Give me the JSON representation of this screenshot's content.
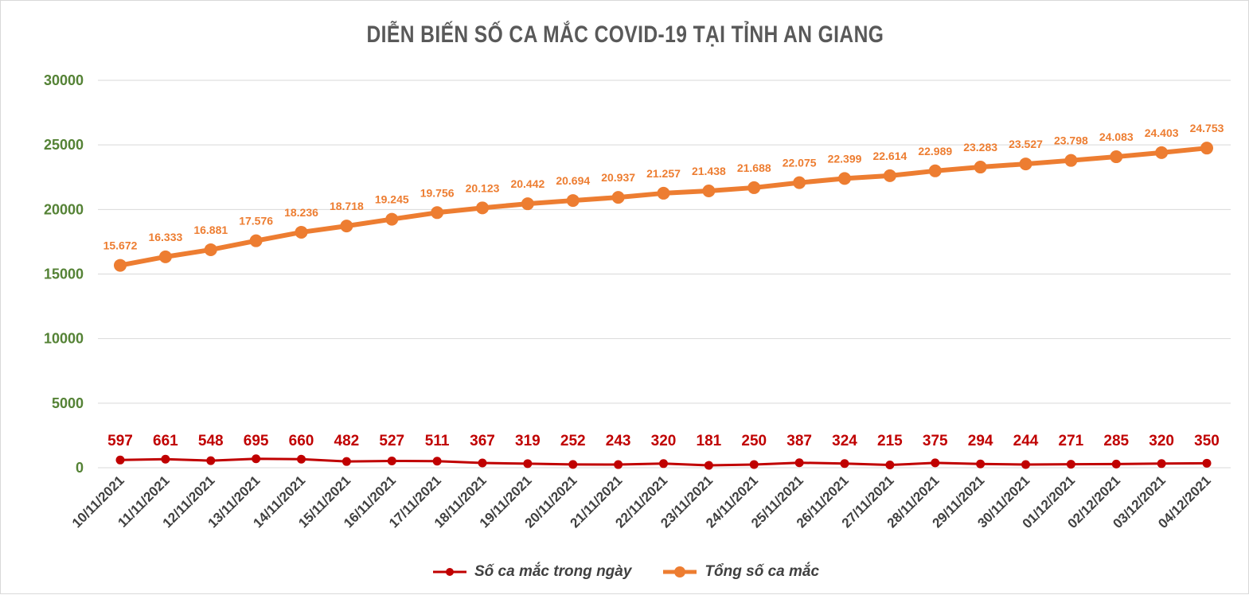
{
  "chart_data": {
    "type": "line",
    "title": "DIỄN BIẾN SỐ CA MẮC COVID-19 TẠI TỈNH AN GIANG",
    "xlabel": "",
    "ylabel": "",
    "ylim": [
      0,
      30000
    ],
    "yticks": [
      0,
      5000,
      10000,
      15000,
      20000,
      25000,
      30000
    ],
    "ytick_labels": [
      "0",
      "5000",
      "10000",
      "15000",
      "20000",
      "25000",
      "30000"
    ],
    "grid": true,
    "legend_position": "bottom",
    "categories": [
      "10/11/2021",
      "11/11/2021",
      "12/11/2021",
      "13/11/2021",
      "14/11/2021",
      "15/11/2021",
      "16/11/2021",
      "17/11/2021",
      "18/11/2021",
      "19/11/2021",
      "20/11/2021",
      "21/11/2021",
      "22/11/2021",
      "23/11/2021",
      "24/11/2021",
      "25/11/2021",
      "26/11/2021",
      "27/11/2021",
      "28/11/2021",
      "29/11/2021",
      "30/11/2021",
      "01/12/2021",
      "02/12/2021",
      "03/12/2021",
      "04/12/2021"
    ],
    "series": [
      {
        "name": "Số ca mắc trong ngày",
        "color": "#c00000",
        "values": [
          597,
          661,
          548,
          695,
          660,
          482,
          527,
          511,
          367,
          319,
          252,
          243,
          320,
          181,
          250,
          387,
          324,
          215,
          375,
          294,
          244,
          271,
          285,
          320,
          350
        ],
        "labels": [
          "597",
          "661",
          "548",
          "695",
          "660",
          "482",
          "527",
          "511",
          "367",
          "319",
          "252",
          "243",
          "320",
          "181",
          "250",
          "387",
          "324",
          "215",
          "375",
          "294",
          "244",
          "271",
          "285",
          "320",
          "350"
        ]
      },
      {
        "name": "Tổng số ca mắc",
        "color": "#ed7d31",
        "values": [
          15672,
          16333,
          16881,
          17576,
          18236,
          18718,
          19245,
          19756,
          20123,
          20442,
          20694,
          20937,
          21257,
          21438,
          21688,
          22075,
          22399,
          22614,
          22989,
          23283,
          23527,
          23798,
          24083,
          24403,
          24753
        ],
        "labels": [
          "15.672",
          "16.333",
          "16.881",
          "17.576",
          "18.236",
          "18.718",
          "19.245",
          "19.756",
          "20.123",
          "20.442",
          "20.694",
          "20.937",
          "21.257",
          "21.438",
          "21.688",
          "22.075",
          "22.399",
          "22.614",
          "22.989",
          "23.283",
          "23.527",
          "23.798",
          "24.083",
          "24.403",
          "24.753"
        ]
      }
    ],
    "colors": {
      "grid": "#d9d9d9",
      "ytick": "#548235",
      "xtick": "#404040",
      "title": "#595959"
    }
  }
}
